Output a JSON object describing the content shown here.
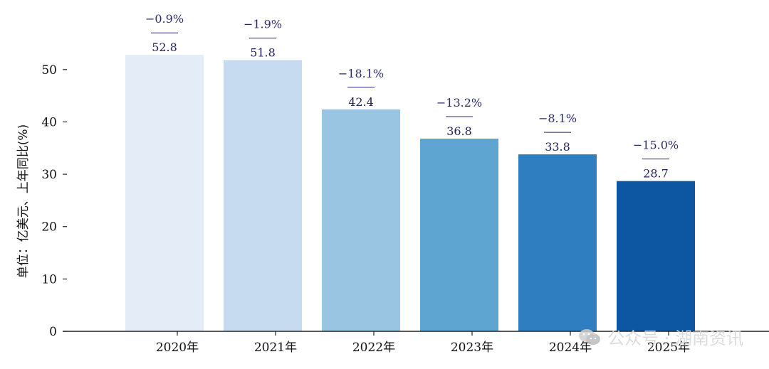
{
  "chart_data": {
    "type": "bar",
    "categories": [
      "2020年",
      "2021年",
      "2022年",
      "2023年",
      "2024年",
      "2025年"
    ],
    "values": [
      52.8,
      51.8,
      42.4,
      36.8,
      33.8,
      28.7
    ],
    "value_labels": [
      "52.8",
      "51.8",
      "42.4",
      "36.8",
      "33.8",
      "28.7"
    ],
    "yoy_labels": [
      "−0.9%",
      "−1.9%",
      "−18.1%",
      "−13.2%",
      "−8.1%",
      "−15.0%"
    ],
    "colors": [
      "#e3ecf7",
      "#c6dbef",
      "#99c5e2",
      "#5ea5d2",
      "#2f7ebf",
      "#0d57a2"
    ],
    "ylabel": "单位：亿美元、上年同比(%)",
    "xlabel": "",
    "title": "",
    "ylim": [
      0,
      55
    ],
    "yticks": [
      0,
      10,
      20,
      30,
      40,
      50
    ],
    "grid": false
  },
  "watermark": {
    "text": "公众号 · 湖南资讯",
    "icon": "wechat-icon"
  }
}
